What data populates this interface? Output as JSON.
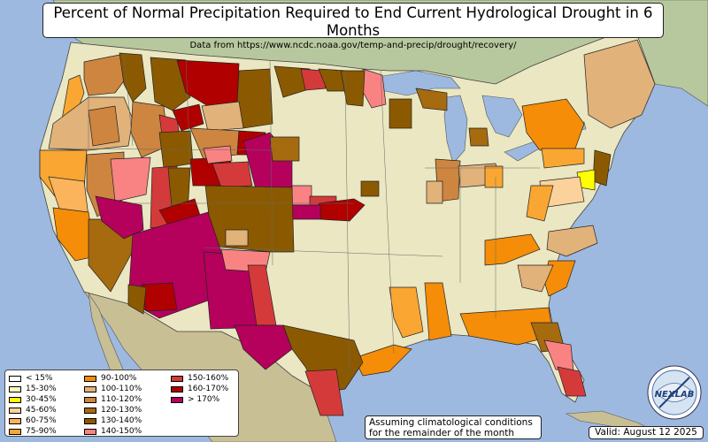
{
  "title": "Percent of Normal Precipitation Required to End Current Hydrological Drought in 6 Months",
  "subtitle": "Data from https://www.ncdc.noaa.gov/temp-and-precip/drought/recovery/",
  "note_line1": "Assuming climatological conditions",
  "note_line2": "for the remainder of the month",
  "valid": "Valid: August 12 2025",
  "logo_text": "NEXLAB",
  "legend": [
    {
      "label": "< 15%",
      "color": "#ffffff"
    },
    {
      "label": "15-30%",
      "color": "#ffffc0"
    },
    {
      "label": "30-45%",
      "color": "#ffff00"
    },
    {
      "label": "45-60%",
      "color": "#fbd29b"
    },
    {
      "label": "60-75%",
      "color": "#fbb45c"
    },
    {
      "label": "75-90%",
      "color": "#f9a732"
    },
    {
      "label": "90-100%",
      "color": "#f58d08"
    },
    {
      "label": "100-110%",
      "color": "#e1b27a"
    },
    {
      "label": "110-120%",
      "color": "#cd853f"
    },
    {
      "label": "120-130%",
      "color": "#a66a0f"
    },
    {
      "label": "130-140%",
      "color": "#8b5a00"
    },
    {
      "label": "140-150%",
      "color": "#f98383"
    },
    {
      "label": "150-160%",
      "color": "#d53a3a"
    },
    {
      "label": "160-170%",
      "color": "#b10000"
    },
    {
      "label": "> 170%",
      "color": "#b5005c"
    }
  ],
  "colors": {
    "ocean": "#9db9e0",
    "land_canada": "#b7c89e",
    "land_mexico": "#c9bf95",
    "land_us": "#eae7c2",
    "lake": "#9db9e0"
  }
}
